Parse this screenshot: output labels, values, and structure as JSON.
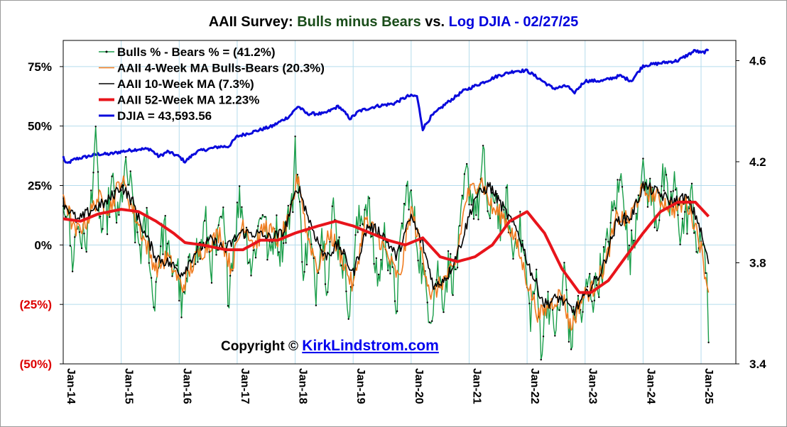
{
  "chart_data": {
    "type": "line",
    "title": {
      "part1": "AAII Survey: ",
      "part2": "Bulls minus Bears",
      "part3": " vs. ",
      "part4": "Log DJIA - 02/27/25",
      "colors": [
        "#000000",
        "#1a4d1a",
        "#000000",
        "#0000dd"
      ]
    },
    "x_tick_labels": [
      "Jan-14",
      "Jan-15",
      "Jan-16",
      "Jan-17",
      "Jan-18",
      "Jan-19",
      "Jan-20",
      "Jan-21",
      "Jan-22",
      "Jan-23",
      "Jan-24",
      "Jan-25"
    ],
    "x_range": [
      2014.0,
      2025.6
    ],
    "left_axis": {
      "ticks": [
        75,
        50,
        25,
        0,
        -25,
        -50
      ],
      "tick_labels": [
        "75%",
        "50%",
        "25%",
        "0%",
        "(25%)",
        "(50%)"
      ],
      "tick_colors": [
        "#000000",
        "#000000",
        "#000000",
        "#000000",
        "#dd0000",
        "#dd0000"
      ],
      "range": [
        -50,
        86
      ]
    },
    "right_axis": {
      "ticks": [
        4.6,
        4.2,
        3.8,
        3.4
      ],
      "tick_labels": [
        "4.6",
        "4.2",
        "3.8",
        "3.4"
      ],
      "range": [
        3.4,
        4.68
      ],
      "log_scale_base10": true
    },
    "grid": true,
    "legend_position": "top-left",
    "series": [
      {
        "name": "Bulls % - Bears % = (41.2%)",
        "color": "#1a9e4a",
        "width": 1.4,
        "axis": "left",
        "markers": true,
        "key": "spread"
      },
      {
        "name": "AAII 4-Week MA Bulls-Bears (20.3%)",
        "color": "#f07b1e",
        "width": 1.6,
        "axis": "left",
        "key": "ma4"
      },
      {
        "name": "AAII 10-Week MA (7.3%)",
        "color": "#000000",
        "width": 1.6,
        "axis": "left",
        "key": "ma10"
      },
      {
        "name": "AAII 52-Week MA 12.23%",
        "color": "#e8141b",
        "width": 4,
        "axis": "left",
        "key": "ma52"
      },
      {
        "name": "DJIA =  43,593.56",
        "color": "#0a0adc",
        "width": 3,
        "axis": "right",
        "key": "djia"
      }
    ],
    "anchors": {
      "spread": [
        [
          2014.0,
          20
        ],
        [
          2014.08,
          16
        ],
        [
          2014.15,
          -8
        ],
        [
          2014.25,
          10
        ],
        [
          2014.35,
          0
        ],
        [
          2014.45,
          8
        ],
        [
          2014.55,
          45
        ],
        [
          2014.65,
          5
        ],
        [
          2014.75,
          12
        ],
        [
          2014.85,
          25
        ],
        [
          2014.95,
          8
        ],
        [
          2015.05,
          30
        ],
        [
          2015.15,
          26
        ],
        [
          2015.25,
          5
        ],
        [
          2015.35,
          -2
        ],
        [
          2015.45,
          12
        ],
        [
          2015.55,
          -27
        ],
        [
          2015.65,
          -5
        ],
        [
          2015.75,
          8
        ],
        [
          2015.85,
          -12
        ],
        [
          2015.95,
          -5
        ],
        [
          2016.05,
          -28
        ],
        [
          2016.15,
          -15
        ],
        [
          2016.25,
          0
        ],
        [
          2016.35,
          -5
        ],
        [
          2016.45,
          10
        ],
        [
          2016.55,
          -8
        ],
        [
          2016.65,
          -2
        ],
        [
          2016.75,
          12
        ],
        [
          2016.85,
          -20
        ],
        [
          2016.95,
          5
        ],
        [
          2017.05,
          20
        ],
        [
          2017.15,
          5
        ],
        [
          2017.25,
          -10
        ],
        [
          2017.35,
          5
        ],
        [
          2017.45,
          18
        ],
        [
          2017.55,
          -8
        ],
        [
          2017.65,
          8
        ],
        [
          2017.75,
          -2
        ],
        [
          2017.85,
          10
        ],
        [
          2017.95,
          15
        ],
        [
          2018.0,
          44
        ],
        [
          2018.08,
          12
        ],
        [
          2018.15,
          -10
        ],
        [
          2018.25,
          5
        ],
        [
          2018.35,
          -20
        ],
        [
          2018.45,
          10
        ],
        [
          2018.55,
          -15
        ],
        [
          2018.65,
          15
        ],
        [
          2018.75,
          0
        ],
        [
          2018.85,
          -10
        ],
        [
          2018.95,
          -28
        ],
        [
          2019.05,
          5
        ],
        [
          2019.15,
          12
        ],
        [
          2019.25,
          20
        ],
        [
          2019.35,
          -5
        ],
        [
          2019.45,
          -15
        ],
        [
          2019.55,
          5
        ],
        [
          2019.65,
          -10
        ],
        [
          2019.75,
          -25
        ],
        [
          2019.85,
          10
        ],
        [
          2019.95,
          25
        ],
        [
          2020.05,
          10
        ],
        [
          2020.15,
          -5
        ],
        [
          2020.25,
          -20
        ],
        [
          2020.35,
          -28
        ],
        [
          2020.45,
          -10
        ],
        [
          2020.55,
          -22
        ],
        [
          2020.65,
          -8
        ],
        [
          2020.75,
          -15
        ],
        [
          2020.85,
          5
        ],
        [
          2020.95,
          30
        ],
        [
          2021.05,
          20
        ],
        [
          2021.15,
          15
        ],
        [
          2021.25,
          36
        ],
        [
          2021.35,
          8
        ],
        [
          2021.45,
          25
        ],
        [
          2021.55,
          5
        ],
        [
          2021.65,
          20
        ],
        [
          2021.75,
          -5
        ],
        [
          2021.85,
          10
        ],
        [
          2021.95,
          -5
        ],
        [
          2022.05,
          -30
        ],
        [
          2022.15,
          -15
        ],
        [
          2022.25,
          -43
        ],
        [
          2022.35,
          -20
        ],
        [
          2022.45,
          -35
        ],
        [
          2022.55,
          -30
        ],
        [
          2022.65,
          -10
        ],
        [
          2022.75,
          -43
        ],
        [
          2022.85,
          -25
        ],
        [
          2022.95,
          -30
        ],
        [
          2023.05,
          -15
        ],
        [
          2023.15,
          -22
        ],
        [
          2023.25,
          -12
        ],
        [
          2023.35,
          -5
        ],
        [
          2023.45,
          10
        ],
        [
          2023.55,
          20
        ],
        [
          2023.65,
          30
        ],
        [
          2023.75,
          -8
        ],
        [
          2023.85,
          5
        ],
        [
          2023.95,
          31
        ],
        [
          2024.05,
          25
        ],
        [
          2024.15,
          20
        ],
        [
          2024.25,
          10
        ],
        [
          2024.35,
          28
        ],
        [
          2024.45,
          15
        ],
        [
          2024.55,
          25
        ],
        [
          2024.65,
          5
        ],
        [
          2024.75,
          12
        ],
        [
          2024.85,
          20
        ],
        [
          2024.95,
          -5
        ],
        [
          2025.05,
          5
        ],
        [
          2025.1,
          -20
        ],
        [
          2025.13,
          -41
        ]
      ],
      "ma4": [
        [
          2014.0,
          22
        ],
        [
          2014.2,
          5
        ],
        [
          2014.4,
          10
        ],
        [
          2014.6,
          20
        ],
        [
          2014.8,
          15
        ],
        [
          2015.0,
          28
        ],
        [
          2015.2,
          15
        ],
        [
          2015.4,
          2
        ],
        [
          2015.6,
          -10
        ],
        [
          2015.8,
          -5
        ],
        [
          2016.05,
          -18
        ],
        [
          2016.3,
          -5
        ],
        [
          2016.5,
          0
        ],
        [
          2016.7,
          5
        ],
        [
          2016.9,
          -10
        ],
        [
          2017.1,
          10
        ],
        [
          2017.3,
          0
        ],
        [
          2017.5,
          8
        ],
        [
          2017.7,
          2
        ],
        [
          2017.9,
          10
        ],
        [
          2018.05,
          30
        ],
        [
          2018.2,
          5
        ],
        [
          2018.4,
          -10
        ],
        [
          2018.6,
          5
        ],
        [
          2018.8,
          -5
        ],
        [
          2019.0,
          -18
        ],
        [
          2019.2,
          10
        ],
        [
          2019.4,
          5
        ],
        [
          2019.6,
          -5
        ],
        [
          2019.8,
          -15
        ],
        [
          2020.0,
          15
        ],
        [
          2020.2,
          -5
        ],
        [
          2020.35,
          -22
        ],
        [
          2020.55,
          -15
        ],
        [
          2020.75,
          -10
        ],
        [
          2020.95,
          20
        ],
        [
          2021.2,
          28
        ],
        [
          2021.4,
          15
        ],
        [
          2021.6,
          12
        ],
        [
          2021.8,
          2
        ],
        [
          2022.0,
          -15
        ],
        [
          2022.2,
          -30
        ],
        [
          2022.4,
          -25
        ],
        [
          2022.6,
          -20
        ],
        [
          2022.75,
          -35
        ],
        [
          2022.95,
          -22
        ],
        [
          2023.15,
          -18
        ],
        [
          2023.35,
          -8
        ],
        [
          2023.55,
          12
        ],
        [
          2023.75,
          10
        ],
        [
          2023.95,
          22
        ],
        [
          2024.15,
          22
        ],
        [
          2024.35,
          18
        ],
        [
          2024.55,
          15
        ],
        [
          2024.75,
          18
        ],
        [
          2024.95,
          5
        ],
        [
          2025.13,
          -20
        ]
      ],
      "ma10": [
        [
          2014.0,
          18
        ],
        [
          2014.25,
          10
        ],
        [
          2014.5,
          15
        ],
        [
          2014.75,
          18
        ],
        [
          2015.0,
          25
        ],
        [
          2015.2,
          18
        ],
        [
          2015.4,
          5
        ],
        [
          2015.6,
          -5
        ],
        [
          2015.85,
          -8
        ],
        [
          2016.05,
          -12
        ],
        [
          2016.3,
          -2
        ],
        [
          2016.55,
          2
        ],
        [
          2016.8,
          -2
        ],
        [
          2017.05,
          5
        ],
        [
          2017.3,
          5
        ],
        [
          2017.55,
          3
        ],
        [
          2017.8,
          5
        ],
        [
          2018.05,
          25
        ],
        [
          2018.25,
          10
        ],
        [
          2018.5,
          -5
        ],
        [
          2018.75,
          0
        ],
        [
          2019.0,
          -12
        ],
        [
          2019.25,
          8
        ],
        [
          2019.5,
          5
        ],
        [
          2019.75,
          -5
        ],
        [
          2020.0,
          12
        ],
        [
          2020.2,
          0
        ],
        [
          2020.4,
          -18
        ],
        [
          2020.65,
          -12
        ],
        [
          2020.85,
          0
        ],
        [
          2021.1,
          20
        ],
        [
          2021.35,
          25
        ],
        [
          2021.6,
          15
        ],
        [
          2021.85,
          5
        ],
        [
          2022.05,
          -10
        ],
        [
          2022.3,
          -25
        ],
        [
          2022.55,
          -22
        ],
        [
          2022.8,
          -28
        ],
        [
          2023.05,
          -20
        ],
        [
          2023.3,
          -10
        ],
        [
          2023.55,
          10
        ],
        [
          2023.8,
          12
        ],
        [
          2024.0,
          25
        ],
        [
          2024.25,
          22
        ],
        [
          2024.5,
          18
        ],
        [
          2024.75,
          20
        ],
        [
          2024.95,
          10
        ],
        [
          2025.13,
          -8
        ]
      ],
      "ma52": [
        [
          2014.0,
          11
        ],
        [
          2014.3,
          10
        ],
        [
          2014.6,
          13
        ],
        [
          2015.0,
          15
        ],
        [
          2015.3,
          14
        ],
        [
          2015.6,
          10
        ],
        [
          2015.9,
          5
        ],
        [
          2016.1,
          1
        ],
        [
          2016.4,
          0
        ],
        [
          2016.8,
          -2
        ],
        [
          2017.1,
          -2
        ],
        [
          2017.4,
          2
        ],
        [
          2017.7,
          2
        ],
        [
          2018.0,
          5
        ],
        [
          2018.4,
          8
        ],
        [
          2018.7,
          10
        ],
        [
          2019.0,
          8
        ],
        [
          2019.3,
          5
        ],
        [
          2019.6,
          2
        ],
        [
          2019.9,
          0
        ],
        [
          2020.2,
          3
        ],
        [
          2020.5,
          -5
        ],
        [
          2020.8,
          -7
        ],
        [
          2021.1,
          -5
        ],
        [
          2021.4,
          0
        ],
        [
          2021.7,
          10
        ],
        [
          2022.0,
          14
        ],
        [
          2022.3,
          5
        ],
        [
          2022.6,
          -10
        ],
        [
          2022.9,
          -20
        ],
        [
          2023.1,
          -20
        ],
        [
          2023.4,
          -15
        ],
        [
          2023.7,
          -5
        ],
        [
          2024.0,
          5
        ],
        [
          2024.3,
          14
        ],
        [
          2024.6,
          18
        ],
        [
          2024.9,
          18
        ],
        [
          2025.13,
          12
        ]
      ],
      "djia": [
        [
          2014.0,
          4.22
        ],
        [
          2014.05,
          4.19
        ],
        [
          2014.2,
          4.21
        ],
        [
          2014.4,
          4.22
        ],
        [
          2014.6,
          4.23
        ],
        [
          2014.8,
          4.23
        ],
        [
          2015.0,
          4.24
        ],
        [
          2015.3,
          4.25
        ],
        [
          2015.5,
          4.25
        ],
        [
          2015.65,
          4.22
        ],
        [
          2015.8,
          4.24
        ],
        [
          2016.0,
          4.22
        ],
        [
          2016.1,
          4.2
        ],
        [
          2016.3,
          4.24
        ],
        [
          2016.5,
          4.25
        ],
        [
          2016.7,
          4.26
        ],
        [
          2016.85,
          4.26
        ],
        [
          2017.0,
          4.3
        ],
        [
          2017.3,
          4.32
        ],
        [
          2017.6,
          4.34
        ],
        [
          2017.9,
          4.38
        ],
        [
          2018.05,
          4.42
        ],
        [
          2018.2,
          4.39
        ],
        [
          2018.5,
          4.39
        ],
        [
          2018.75,
          4.42
        ],
        [
          2018.95,
          4.37
        ],
        [
          2019.1,
          4.4
        ],
        [
          2019.4,
          4.42
        ],
        [
          2019.7,
          4.43
        ],
        [
          2019.95,
          4.46
        ],
        [
          2020.1,
          4.46
        ],
        [
          2020.2,
          4.33
        ],
        [
          2020.35,
          4.38
        ],
        [
          2020.6,
          4.43
        ],
        [
          2020.9,
          4.48
        ],
        [
          2021.2,
          4.51
        ],
        [
          2021.5,
          4.54
        ],
        [
          2021.8,
          4.56
        ],
        [
          2022.0,
          4.56
        ],
        [
          2022.2,
          4.53
        ],
        [
          2022.45,
          4.49
        ],
        [
          2022.7,
          4.5
        ],
        [
          2022.8,
          4.47
        ],
        [
          2023.0,
          4.52
        ],
        [
          2023.3,
          4.52
        ],
        [
          2023.6,
          4.54
        ],
        [
          2023.8,
          4.52
        ],
        [
          2024.0,
          4.58
        ],
        [
          2024.3,
          4.59
        ],
        [
          2024.6,
          4.6
        ],
        [
          2024.9,
          4.64
        ],
        [
          2025.0,
          4.63
        ],
        [
          2025.13,
          4.64
        ]
      ]
    },
    "noise": {
      "spread": 9,
      "ma4": 4,
      "ma10": 2.5,
      "djia": 0.006
    },
    "copyright_prefix": "Copyright © ",
    "copyright_link": "KirkLindstrom.com"
  }
}
